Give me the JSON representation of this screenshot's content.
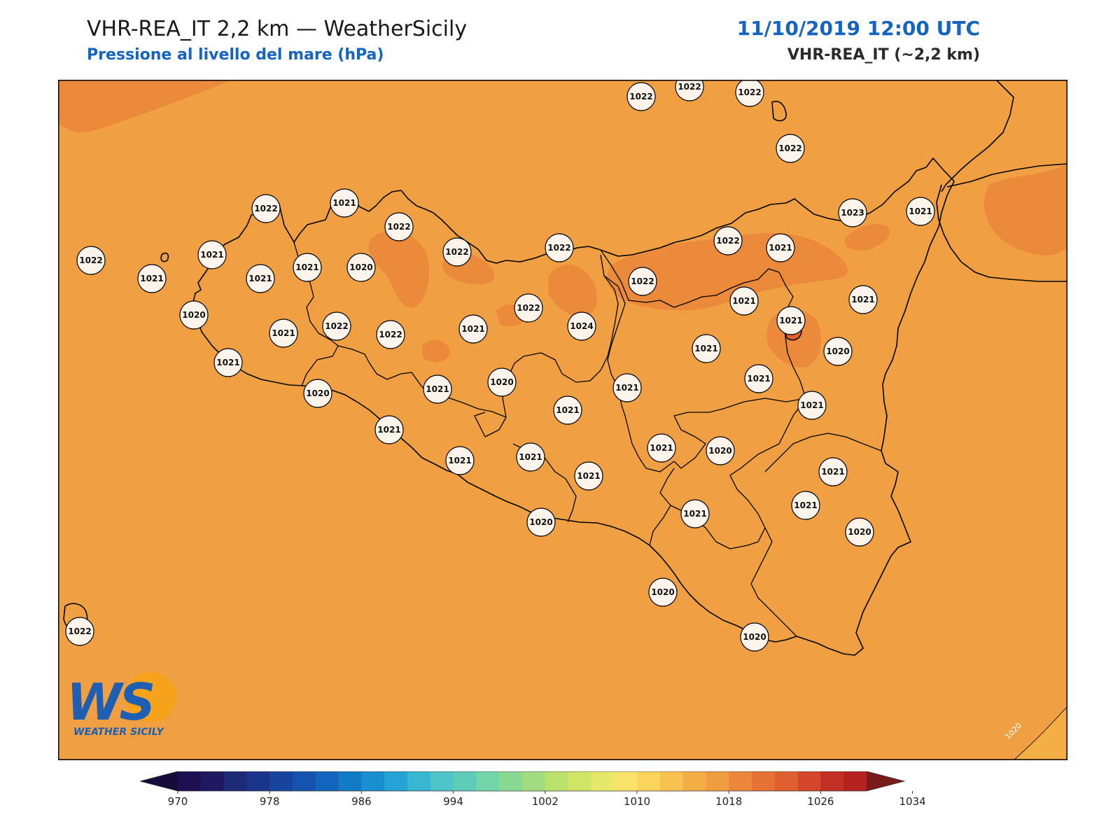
{
  "header": {
    "title": "VHR-REA_IT 2,2 km — WeatherSicily",
    "subtitle": "Pressione al livello del mare (hPa)",
    "datetime": "11/10/2019 12:00 UTC",
    "model": "VHR-REA_IT (~2,2 km)"
  },
  "logo": {
    "initials": "WS",
    "name": "WEATHER SICILY"
  },
  "contour_label": "1020",
  "colors": {
    "field_main": "#f0a043",
    "field_high": "#eb8a3b",
    "field_low": "#f3ae46",
    "coast": "#000000",
    "title_blue": "#1565c0"
  },
  "colorbar": {
    "ticks": [
      "970",
      "978",
      "986",
      "994",
      "1002",
      "1010",
      "1018",
      "1026",
      "1034"
    ],
    "colors": [
      "#1e1050",
      "#201860",
      "#1d2a76",
      "#1a358a",
      "#17459e",
      "#1454ae",
      "#1265bc",
      "#117bc6",
      "#1a8fcf",
      "#27a2d4",
      "#39b6d2",
      "#4cc4c8",
      "#5fccba",
      "#74d5a8",
      "#8ad992",
      "#a1dd7e",
      "#bae26d",
      "#d0e465",
      "#e5e86b",
      "#f9e26a",
      "#fbd45e",
      "#f8c152",
      "#f4ae48",
      "#f09c40",
      "#ec873a",
      "#e67335",
      "#df5f2f",
      "#d5472a",
      "#c53026",
      "#b5221f"
    ],
    "under_color": "#160c3a",
    "over_color": "#7a1a1a"
  },
  "stations": [
    {
      "v": "1022"
    },
    {
      "v": "1022"
    },
    {
      "v": "1022"
    },
    {
      "v": "1022"
    },
    {
      "v": "1022"
    },
    {
      "v": "1021"
    },
    {
      "v": "1022"
    },
    {
      "v": "1022"
    },
    {
      "v": "1022"
    },
    {
      "v": "1021"
    },
    {
      "v": "1022"
    },
    {
      "v": "1021"
    },
    {
      "v": "1021"
    },
    {
      "v": "1021"
    },
    {
      "v": "1021"
    },
    {
      "v": "1020"
    },
    {
      "v": "1022"
    },
    {
      "v": "1021"
    },
    {
      "v": "1022"
    },
    {
      "v": "1023"
    },
    {
      "v": "1022"
    },
    {
      "v": "1021"
    },
    {
      "v": "1021"
    },
    {
      "v": "1020"
    },
    {
      "v": "1022"
    },
    {
      "v": "1022"
    },
    {
      "v": "1021"
    },
    {
      "v": "1024"
    },
    {
      "v": "1021"
    },
    {
      "v": "1021"
    },
    {
      "v": "1021"
    },
    {
      "v": "1020"
    },
    {
      "v": "1021"
    },
    {
      "v": "1021"
    },
    {
      "v": "1021"
    },
    {
      "v": "1020"
    },
    {
      "v": "1021"
    },
    {
      "v": "1021"
    },
    {
      "v": "1021"
    },
    {
      "v": "1020"
    },
    {
      "v": "1021"
    },
    {
      "v": "1021"
    },
    {
      "v": "1021"
    },
    {
      "v": "1021"
    },
    {
      "v": "1020"
    },
    {
      "v": "1021"
    },
    {
      "v": "1020"
    },
    {
      "v": "1021"
    },
    {
      "v": "1021"
    },
    {
      "v": "1021"
    },
    {
      "v": "1020"
    },
    {
      "v": "1020"
    },
    {
      "v": "1020"
    },
    {
      "v": "1022"
    }
  ]
}
